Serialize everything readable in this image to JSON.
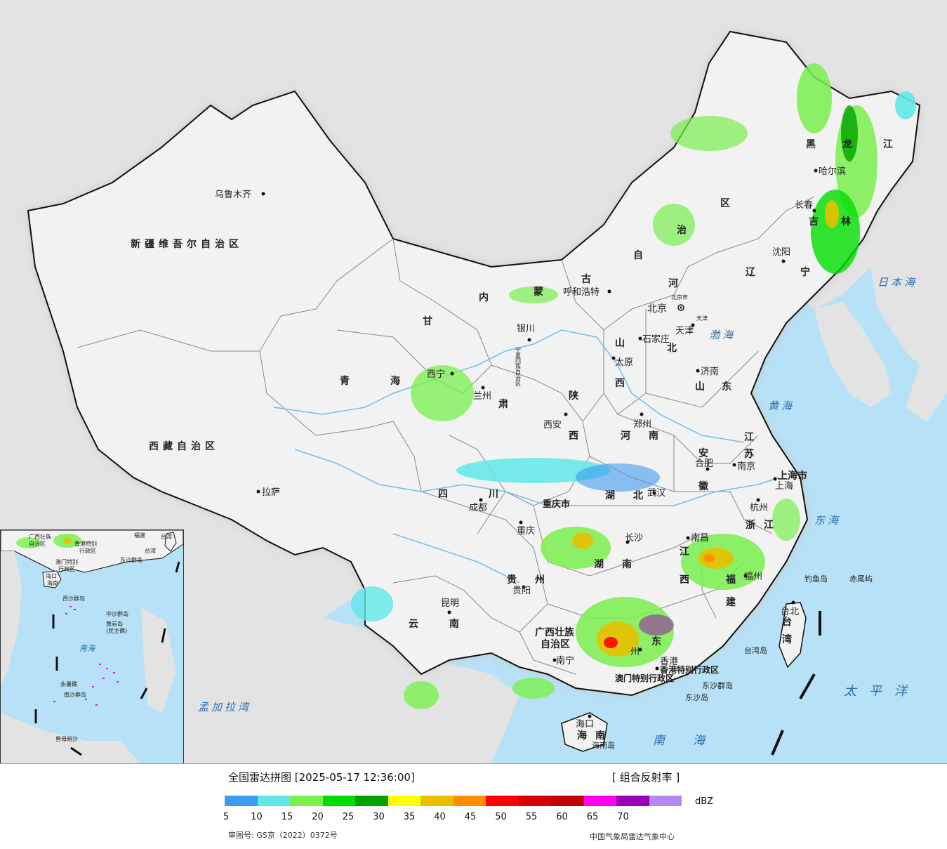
{
  "map": {
    "regions": {
      "xinjiang": "新疆维吾尔自治区",
      "xizang": "西藏自治区",
      "qinghai_a": "青",
      "qinghai_b": "海",
      "gansu_a": "甘",
      "gansu_b": "肃",
      "neimenggu_a": "内",
      "neimenggu_b": "蒙",
      "neimenggu_c": "古",
      "neimenggu_d": "自",
      "neimenggu_e": "治",
      "neimenggu_f": "区",
      "heilongjiang_a": "黑",
      "heilongjiang_b": "龙",
      "heilongjiang_c": "江",
      "jilin_a": "吉",
      "jilin_b": "林",
      "liaoning_a": "辽",
      "liaoning_b": "宁",
      "hebei_a": "河",
      "hebei_b": "北",
      "shanxi_a": "山",
      "shanxi_b": "西",
      "shandong_a": "山",
      "shandong_b": "东",
      "shaanxi_a": "陕",
      "shaanxi_b": "西",
      "henan_a": "河",
      "henan_b": "南",
      "sichuan_a": "四",
      "sichuan_b": "川",
      "chongqing": "重庆市",
      "hubei_a": "湖",
      "hubei_b": "北",
      "anhui_a": "安",
      "anhui_b": "徽",
      "jiangsu_a": "江",
      "jiangsu_b": "苏",
      "shanghai": "上海市",
      "zhejiang_a": "浙",
      "zhejiang_b": "江",
      "jiangxi_a": "江",
      "jiangxi_b": "西",
      "hunan_a": "湖",
      "hunan_b": "南",
      "guizhou_a": "贵",
      "guizhou_b": "州",
      "yunnan_a": "云",
      "yunnan_b": "南",
      "guangxi_a": "广西壮族",
      "guangxi_b": "自治区",
      "guangdong": "东",
      "fujian_a": "福",
      "fujian_b": "建",
      "taiwan_a": "台",
      "taiwan_b": "湾",
      "hainan_a": "海",
      "hainan_b": "南",
      "hongkong": "香港特别行政区",
      "macau": "澳门特别行政区"
    },
    "cities": {
      "urumqi": "乌鲁木齐",
      "lhasa": "拉萨",
      "xining": "西宁",
      "lanzhou": "兰州",
      "yinchuan": "银川",
      "hohhot": "呼和浩特",
      "beijing": "北京",
      "beijing_small": "北京市",
      "tianjin": "天津",
      "tianjin_small": "天津",
      "shijiazhuang": "石家庄",
      "taiyuan": "太原",
      "jinan": "济南",
      "xian": "西安",
      "zhengzhou": "郑州",
      "hefei": "合肥",
      "nanjing": "南京",
      "shanghai": "上海",
      "hangzhou": "杭州",
      "wuhan": "武汉",
      "chengdu": "成都",
      "chongqing": "重庆",
      "changsha": "长沙",
      "nanchang": "南昌",
      "fuzhou": "福州",
      "guiyang": "贵阳",
      "kunming": "昆明",
      "nanning": "南宁",
      "guangzhou": "州",
      "hongkong": "香港",
      "haikou": "海口",
      "taipei": "台北",
      "harbin": "哈尔滨",
      "changchun": "长春",
      "shenyang": "沈阳",
      "ningxia": "宁夏回族自治区"
    },
    "seas": {
      "japan_sea": "日本海",
      "bohai": "渤海",
      "yellow_sea": "黄海",
      "east_sea": "东海",
      "pacific": "太平洋",
      "south_sea": "南海",
      "bengal": "孟加拉湾"
    },
    "islands": {
      "diaoyu": "钓鱼岛",
      "chiwei": "赤尾屿",
      "taiwan_island": "台湾岛",
      "dongsha_qundao": "东沙群岛",
      "dongsha_dao": "东沙岛",
      "hainan_island": "海南岛"
    },
    "inset": {
      "labels": [
        "广西壮族",
        "自治区",
        "香港特别",
        "行政区",
        "澳门特别",
        "行政区",
        "台湾",
        "东沙群岛",
        "海口",
        "海南",
        "西沙群岛",
        "中沙群岛",
        "黄岩岛",
        "(民主礁)",
        "南海",
        "永暑礁",
        "南沙群岛",
        "曾母暗沙",
        "福建",
        "台湾"
      ]
    },
    "colors": {
      "land": "#f2f2f2",
      "sea": "#b7e1f6",
      "foreign": "#e3e3e3",
      "river": "#6cc0ea",
      "border": "#111111"
    }
  },
  "legend": {
    "title": "全国雷达拼图 [2025-05-17 12:36:00]",
    "product": "[ 组合反射率 ]",
    "unit": "dBZ",
    "colors": [
      "#3d9bf2",
      "#60e8e8",
      "#79f04e",
      "#00de00",
      "#00a300",
      "#ffff00",
      "#e8c000",
      "#ff8e00",
      "#ff0000",
      "#d50000",
      "#c00000",
      "#ff00f0",
      "#9700b5",
      "#b48af0"
    ],
    "ticks": [
      "5",
      "10",
      "15",
      "20",
      "25",
      "30",
      "35",
      "40",
      "45",
      "50",
      "55",
      "60",
      "65",
      "70"
    ],
    "approval": "审图号: GS京（2022）0372号",
    "agency": "中国气象局雷达气象中心"
  }
}
